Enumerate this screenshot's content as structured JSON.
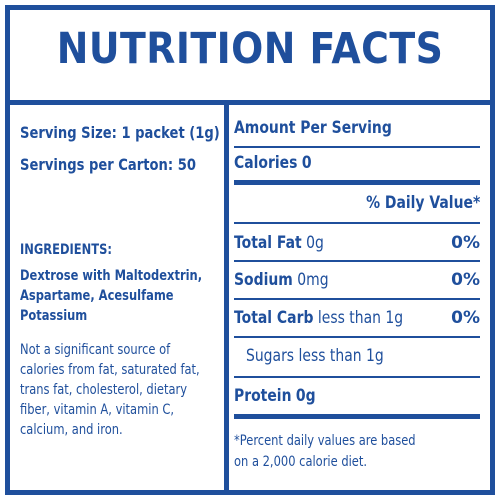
{
  "label": {
    "title": "NUTRITION FACTS",
    "serving_size": "Serving Size: 1 packet (1g)",
    "servings_per_carton": "Servings per Carton: 50",
    "ingredients_heading": "INGREDIENTS:",
    "ingredients_lines": [
      "Dextrose with Maltodextrin,",
      "Aspartame, Acesulfame",
      "Potassium"
    ],
    "note_lines": [
      "Not a significant source of",
      "calories from fat, saturated fat,",
      "trans fat, cholesterol, dietary",
      "fiber, vitamin A, vitamin C,",
      "calcium, and iron."
    ],
    "amount_per_serving": "Amount Per Serving",
    "calories_label": "Calories",
    "calories_value": "0",
    "daily_value_header": "% Daily Value*",
    "nutrients": [
      {
        "name": "Total Fat",
        "amount": "0g",
        "dv": "0%"
      },
      {
        "name": "Sodium",
        "amount": "0mg",
        "dv": "0%"
      },
      {
        "name": "Total Carb",
        "amount": "less than 1g",
        "dv": "0%"
      }
    ],
    "sugars": "Sugars less than 1g",
    "protein_label": "Protein",
    "protein_value": "0g",
    "footnote_lines": [
      "*Percent daily values are based",
      "on a 2,000 calorie diet."
    ]
  },
  "colors": {
    "ink": "#1f4f9c",
    "background": "#ffffff"
  }
}
